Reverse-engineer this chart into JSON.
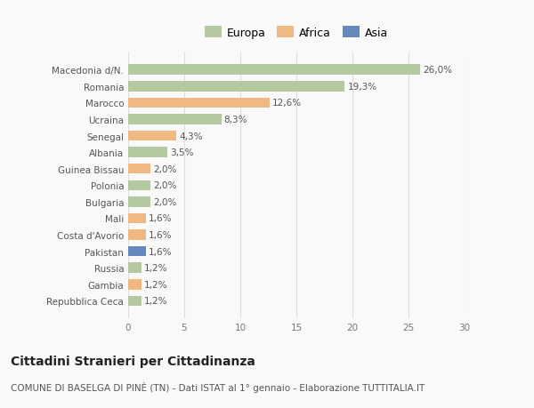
{
  "categories": [
    "Macedonia d/N.",
    "Romania",
    "Marocco",
    "Ucraina",
    "Senegal",
    "Albania",
    "Guinea Bissau",
    "Polonia",
    "Bulgaria",
    "Mali",
    "Costa d'Avorio",
    "Pakistan",
    "Russia",
    "Gambia",
    "Repubblica Ceca"
  ],
  "values": [
    26.0,
    19.3,
    12.6,
    8.3,
    4.3,
    3.5,
    2.0,
    2.0,
    2.0,
    1.6,
    1.6,
    1.6,
    1.2,
    1.2,
    1.2
  ],
  "labels": [
    "26,0%",
    "19,3%",
    "12,6%",
    "8,3%",
    "4,3%",
    "3,5%",
    "2,0%",
    "2,0%",
    "2,0%",
    "1,6%",
    "1,6%",
    "1,6%",
    "1,2%",
    "1,2%",
    "1,2%"
  ],
  "continents": [
    "Europa",
    "Europa",
    "Africa",
    "Europa",
    "Africa",
    "Europa",
    "Africa",
    "Europa",
    "Europa",
    "Africa",
    "Africa",
    "Asia",
    "Europa",
    "Africa",
    "Europa"
  ],
  "colors": {
    "Europa": "#b5c9a0",
    "Africa": "#f0b882",
    "Asia": "#6688bb"
  },
  "legend_labels": [
    "Europa",
    "Africa",
    "Asia"
  ],
  "title": "Cittadini Stranieri per Cittadinanza",
  "subtitle": "COMUNE DI BASELGA DI PINÈ (TN) - Dati ISTAT al 1° gennaio - Elaborazione TUTTITALIA.IT",
  "xlim": [
    0,
    30
  ],
  "xticks": [
    0,
    5,
    10,
    15,
    20,
    25,
    30
  ],
  "bg_color": "#f9f9f9",
  "grid_color": "#dddddd",
  "title_fontsize": 10,
  "subtitle_fontsize": 7.5,
  "label_fontsize": 7.5,
  "tick_fontsize": 7.5,
  "legend_fontsize": 9
}
